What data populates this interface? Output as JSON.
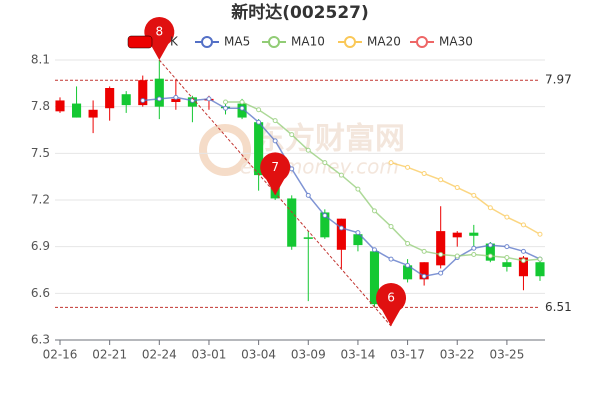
{
  "chart_data": {
    "type": "candlestick",
    "title": "新时达(002527)",
    "categories": [
      "02-16",
      null,
      null,
      "02-21",
      null,
      null,
      "02-24",
      null,
      null,
      "03-01",
      null,
      null,
      "03-04",
      null,
      null,
      "03-09",
      null,
      null,
      "03-14",
      null,
      null,
      "03-17",
      null,
      null,
      "03-22",
      null,
      null,
      "03-25",
      null,
      null
    ],
    "candles": {
      "name": "K",
      "up_color": "#ec0000",
      "down_color": "#14c832",
      "open": [
        7.77,
        7.82,
        7.73,
        7.79,
        7.88,
        7.81,
        7.98,
        7.83,
        7.86,
        7.84,
        7.8,
        7.82,
        7.7,
        7.35,
        7.21,
        6.96,
        7.12,
        6.88,
        6.98,
        6.87,
        6.46,
        6.78,
        6.69,
        6.78,
        6.96,
        6.99,
        6.92,
        6.8,
        6.71,
        6.8
      ],
      "close": [
        7.84,
        7.73,
        7.78,
        7.92,
        7.81,
        7.97,
        7.8,
        7.85,
        7.8,
        7.85,
        7.79,
        7.73,
        7.36,
        7.21,
        6.9,
        6.95,
        6.96,
        7.08,
        6.91,
        6.53,
        6.56,
        6.69,
        6.8,
        7.0,
        6.99,
        6.97,
        6.81,
        6.77,
        6.83,
        6.71
      ],
      "high": [
        7.86,
        7.93,
        7.84,
        7.93,
        7.9,
        8.0,
        8.1,
        7.97,
        7.87,
        7.87,
        7.84,
        7.85,
        7.72,
        7.42,
        7.23,
        7.0,
        7.14,
        7.08,
        7.0,
        6.87,
        6.64,
        6.82,
        6.8,
        7.16,
        7.0,
        7.04,
        6.93,
        6.82,
        6.84,
        6.81
      ],
      "low": [
        7.76,
        7.73,
        7.63,
        7.71,
        7.76,
        7.8,
        7.72,
        7.78,
        7.7,
        7.78,
        7.75,
        7.72,
        7.26,
        7.2,
        6.88,
        6.55,
        6.95,
        6.76,
        6.87,
        6.51,
        6.39,
        6.67,
        6.65,
        6.76,
        6.9,
        6.9,
        6.8,
        6.74,
        6.62,
        6.68
      ]
    },
    "series": [
      {
        "name": "MA5",
        "color": "#5470c6",
        "values": [
          null,
          null,
          null,
          null,
          null,
          7.84,
          7.85,
          7.86,
          7.84,
          7.85,
          7.79,
          7.79,
          7.7,
          7.58,
          7.4,
          7.23,
          7.1,
          7.02,
          6.99,
          6.88,
          6.82,
          6.78,
          6.71,
          6.73,
          6.83,
          6.89,
          6.91,
          6.9,
          6.87,
          6.82
        ]
      },
      {
        "name": "MA10",
        "color": "#91cc75",
        "values": [
          null,
          null,
          null,
          null,
          null,
          null,
          null,
          null,
          null,
          null,
          7.83,
          7.83,
          7.78,
          7.71,
          7.62,
          7.52,
          7.44,
          7.36,
          7.27,
          7.13,
          7.03,
          6.92,
          6.87,
          6.85,
          6.84,
          6.85,
          6.84,
          6.83,
          6.81,
          6.82
        ]
      },
      {
        "name": "MA20",
        "color": "#fac858",
        "values": [
          null,
          null,
          null,
          null,
          null,
          null,
          null,
          null,
          null,
          null,
          null,
          null,
          null,
          null,
          null,
          null,
          null,
          null,
          null,
          null,
          7.44,
          7.41,
          7.37,
          7.33,
          7.28,
          7.23,
          7.15,
          7.09,
          7.04,
          6.98
        ]
      },
      {
        "name": "MA30",
        "color": "#ee6666",
        "values": [
          null,
          null,
          null,
          null,
          null,
          null,
          null,
          null,
          null,
          null,
          null,
          null,
          null,
          null,
          null,
          null,
          null,
          null,
          null,
          null,
          null,
          null,
          null,
          null,
          null,
          null,
          null,
          null,
          null,
          null
        ]
      }
    ],
    "ref_lines": [
      {
        "value": 7.97,
        "color": "#c23531"
      },
      {
        "value": 6.51,
        "color": "#c23531"
      }
    ],
    "annotations": [
      {
        "label": "8",
        "index": 6,
        "value": 8.1
      },
      {
        "label": "7",
        "index": 13,
        "value": 7.23
      },
      {
        "label": "6",
        "index": 20,
        "value": 6.39
      }
    ],
    "watermark": [
      "东方财富网",
      "eastmoney.com"
    ],
    "ylim": [
      6.3,
      8.1
    ],
    "yticks": [
      6.3,
      6.6,
      6.9,
      7.2,
      7.5,
      7.8,
      8.1
    ],
    "grid": true
  }
}
